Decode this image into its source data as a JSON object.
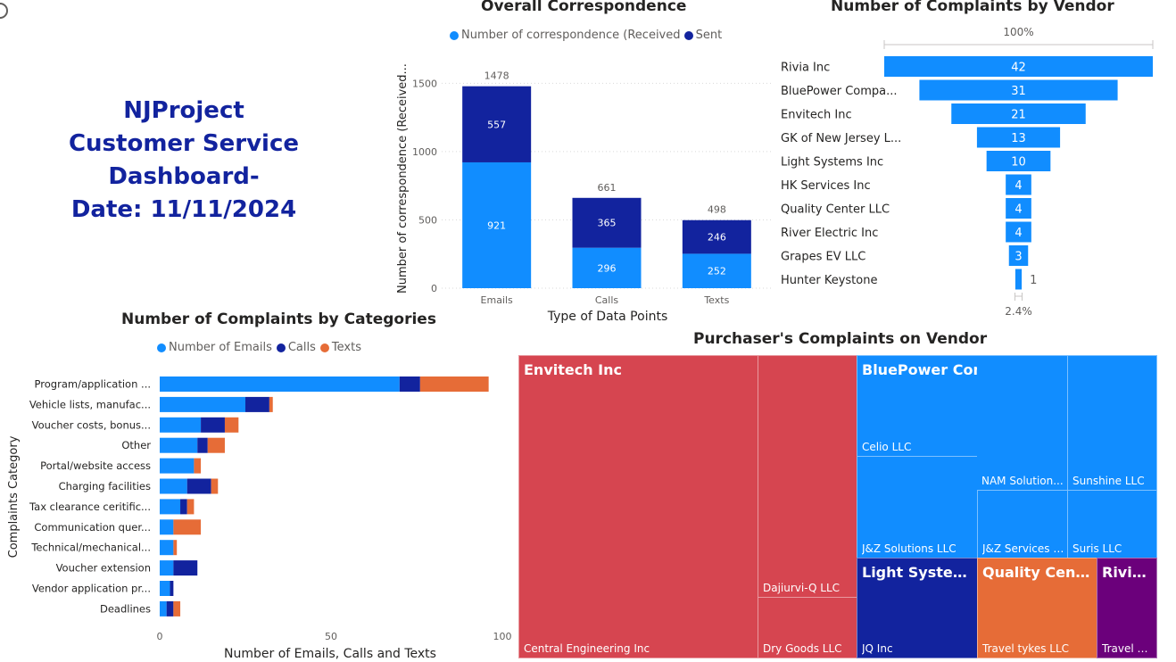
{
  "dashboard": {
    "title_line1": "NJProject",
    "title_line2": "Customer Service Dashboard-",
    "title_line3": "Date: 11/11/2024"
  },
  "colors": {
    "light_blue": "#118dff",
    "dark_blue": "#12239e",
    "orange": "#e66c37",
    "red": "#d64550",
    "purple": "#6b007b",
    "title_blue": "#12239e"
  },
  "chart_data": [
    {
      "id": "overall",
      "type": "bar",
      "stacked": true,
      "title": "Overall Correspondence",
      "legend_title": "Number of correspondence (Received",
      "xlabel": "Type of Data Points",
      "ylabel": "Number of correspondence (Received...",
      "categories": [
        "Emails",
        "Calls",
        "Texts"
      ],
      "series": [
        {
          "name": "Received",
          "values": [
            921,
            296,
            252
          ],
          "color": "#118dff"
        },
        {
          "name": "Sent",
          "values": [
            557,
            365,
            246
          ],
          "color": "#12239e"
        }
      ],
      "totals": [
        1478,
        661,
        498
      ],
      "ylim": [
        0,
        1600
      ],
      "yticks": [
        0,
        500,
        1000,
        1500
      ],
      "grid": true,
      "legend_position": "top"
    },
    {
      "id": "vendor_funnel",
      "type": "bar",
      "subtype": "funnel",
      "title": "Number of Complaints by Vendor",
      "top_label": "100%",
      "bottom_label": "2.4%",
      "categories": [
        "Rivia Inc",
        "BluePower Compa...",
        "Envitech Inc",
        "GK of New Jersey L...",
        "Light Systems Inc",
        "HK Services Inc",
        "Quality Center LLC",
        "River Electric Inc",
        "Grapes EV LLC",
        "Hunter Keystone"
      ],
      "values": [
        42,
        31,
        21,
        13,
        10,
        4,
        4,
        4,
        3,
        1
      ]
    },
    {
      "id": "categories",
      "type": "bar",
      "orientation": "horizontal",
      "stacked": true,
      "title": "Number of Complaints by Categories",
      "xlabel": "Number of Emails, Calls and Texts",
      "ylabel": "Complaints Category",
      "categories": [
        "Program/application ...",
        "Vehicle lists, manufac...",
        "Voucher costs, bonus...",
        "Other",
        "Portal/website access",
        "Charging facilities",
        "Tax clearance ceritific...",
        "Communication quer...",
        "Technical/mechanical...",
        "Voucher extension",
        "Vendor application pr...",
        "Deadlines"
      ],
      "series": [
        {
          "name": "Number of Emails",
          "values": [
            70,
            25,
            12,
            11,
            10,
            8,
            6,
            4,
            4,
            4,
            3,
            2
          ],
          "color": "#118dff"
        },
        {
          "name": "Calls",
          "values": [
            6,
            7,
            7,
            3,
            0,
            7,
            2,
            0,
            0,
            7,
            1,
            2
          ],
          "color": "#12239e"
        },
        {
          "name": "Texts",
          "values": [
            20,
            1,
            4,
            5,
            2,
            2,
            2,
            8,
            1,
            0,
            0,
            2
          ],
          "color": "#e66c37"
        }
      ],
      "xlim": [
        0,
        100
      ],
      "xticks": [
        0,
        50,
        100
      ],
      "legend_position": "top"
    },
    {
      "id": "treemap",
      "type": "treemap",
      "title": "Purchaser's Complaints on Vendor",
      "groups": [
        {
          "name": "Envitech Inc",
          "color": "#d64550",
          "children": [
            "Central Engineering Inc",
            "Dajiurvi-Q LLC",
            "Dry Goods LLC"
          ]
        },
        {
          "name": "BluePower Company LLC",
          "color": "#118dff",
          "children": [
            "Celio LLC",
            "J&Z Solutions LLC",
            "NAM Solution...",
            "Sunshine LLC",
            "J&Z Services L...",
            "Suris LLC"
          ]
        },
        {
          "name": "Light Systems...",
          "color": "#12239e",
          "children": [
            "JQ Inc"
          ]
        },
        {
          "name": "Quality Cente...",
          "color": "#e66c37",
          "children": [
            "Travel tykes LLC"
          ]
        },
        {
          "name": "Rivia...",
          "color": "#6b007b",
          "children": [
            "Travel D..."
          ]
        }
      ]
    }
  ]
}
